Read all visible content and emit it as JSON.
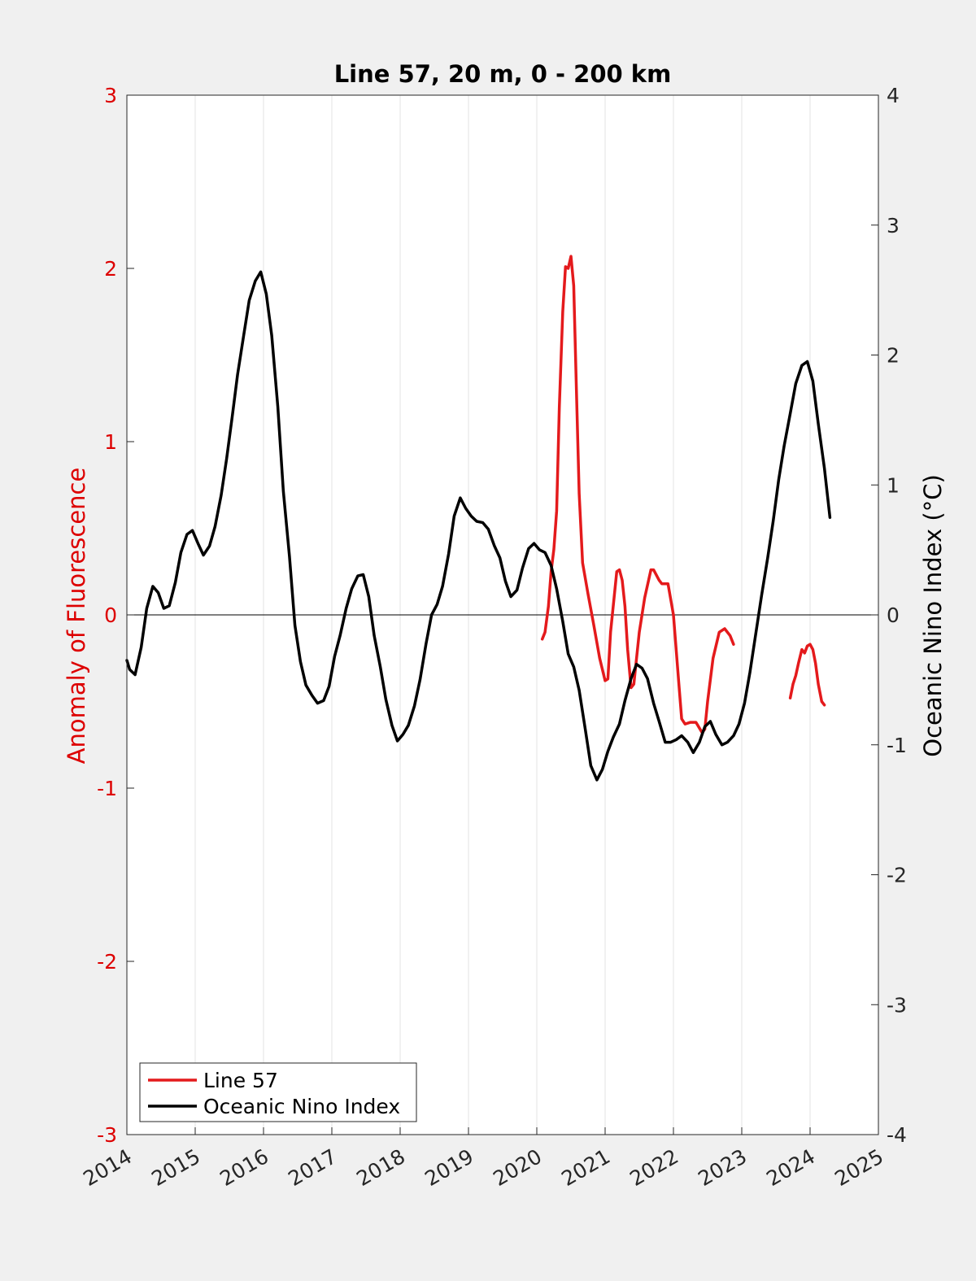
{
  "chart_data": {
    "type": "line",
    "title": "Line 57, 20 m, 0 - 200 km",
    "xlabel": "",
    "ylabel_left": "Anomaly of Fluorescence",
    "ylabel_right": "Oceanic Nino Index (°C)",
    "xlim": [
      2014,
      2025
    ],
    "ylim_left": [
      -3,
      3
    ],
    "ylim_right": [
      -4,
      4
    ],
    "x_ticks": [
      "2014",
      "2015",
      "2016",
      "2017",
      "2018",
      "2019",
      "2020",
      "2021",
      "2022",
      "2023",
      "2024",
      "2025"
    ],
    "y_left_ticks": [
      "-3",
      "-2",
      "-1",
      "0",
      "1",
      "2",
      "3"
    ],
    "y_right_ticks": [
      "-4",
      "-3",
      "-2",
      "-1",
      "0",
      "1",
      "2",
      "3",
      "4"
    ],
    "grid": "vertical",
    "zero_line": true,
    "legend_position": "bottom-left",
    "colors": {
      "fluorescence": "#e41a1c",
      "oni": "#000000",
      "left_axis": "#dd0000"
    },
    "series": [
      {
        "name": "Line 57",
        "axis": "left",
        "color": "#e41a1c",
        "segments": [
          [
            [
              2020.08,
              -0.14
            ],
            [
              2020.12,
              -0.1
            ],
            [
              2020.17,
              0.05
            ],
            [
              2020.21,
              0.25
            ],
            [
              2020.25,
              0.38
            ],
            [
              2020.29,
              0.6
            ],
            [
              2020.33,
              1.2
            ],
            [
              2020.38,
              1.75
            ],
            [
              2020.42,
              2.01
            ],
            [
              2020.46,
              2.0
            ],
            [
              2020.5,
              2.07
            ],
            [
              2020.54,
              1.9
            ],
            [
              2020.58,
              1.3
            ],
            [
              2020.62,
              0.7
            ],
            [
              2020.67,
              0.3
            ],
            [
              2020.75,
              0.12
            ],
            [
              2020.83,
              -0.05
            ],
            [
              2020.92,
              -0.25
            ],
            [
              2021.0,
              -0.38
            ],
            [
              2021.04,
              -0.37
            ],
            [
              2021.08,
              -0.1
            ],
            [
              2021.17,
              0.25
            ],
            [
              2021.21,
              0.26
            ],
            [
              2021.25,
              0.2
            ],
            [
              2021.29,
              0.05
            ],
            [
              2021.33,
              -0.2
            ],
            [
              2021.38,
              -0.42
            ],
            [
              2021.42,
              -0.4
            ],
            [
              2021.5,
              -0.1
            ],
            [
              2021.58,
              0.1
            ],
            [
              2021.67,
              0.26
            ],
            [
              2021.71,
              0.26
            ],
            [
              2021.79,
              0.2
            ],
            [
              2021.83,
              0.18
            ],
            [
              2021.92,
              0.18
            ],
            [
              2022.0,
              0.0
            ],
            [
              2022.08,
              -0.4
            ],
            [
              2022.12,
              -0.6
            ],
            [
              2022.17,
              -0.63
            ],
            [
              2022.25,
              -0.62
            ],
            [
              2022.33,
              -0.62
            ],
            [
              2022.42,
              -0.68
            ],
            [
              2022.46,
              -0.66
            ],
            [
              2022.5,
              -0.5
            ],
            [
              2022.58,
              -0.25
            ],
            [
              2022.67,
              -0.1
            ],
            [
              2022.75,
              -0.08
            ],
            [
              2022.83,
              -0.12
            ],
            [
              2022.88,
              -0.17
            ]
          ],
          [
            [
              2023.71,
              -0.48
            ],
            [
              2023.75,
              -0.4
            ],
            [
              2023.79,
              -0.35
            ],
            [
              2023.83,
              -0.28
            ],
            [
              2023.88,
              -0.2
            ],
            [
              2023.92,
              -0.22
            ],
            [
              2023.96,
              -0.18
            ],
            [
              2024.0,
              -0.17
            ],
            [
              2024.04,
              -0.2
            ],
            [
              2024.08,
              -0.28
            ],
            [
              2024.12,
              -0.4
            ],
            [
              2024.17,
              -0.5
            ],
            [
              2024.21,
              -0.52
            ]
          ]
        ]
      },
      {
        "name": "Oceanic Nino Index",
        "axis": "right",
        "color": "#000000",
        "segments": [
          [
            [
              2014.0,
              -0.35
            ],
            [
              2014.04,
              -0.42
            ],
            [
              2014.12,
              -0.46
            ],
            [
              2014.21,
              -0.25
            ],
            [
              2014.29,
              0.05
            ],
            [
              2014.38,
              0.22
            ],
            [
              2014.46,
              0.17
            ],
            [
              2014.54,
              0.05
            ],
            [
              2014.62,
              0.07
            ],
            [
              2014.71,
              0.25
            ],
            [
              2014.79,
              0.48
            ],
            [
              2014.88,
              0.62
            ],
            [
              2014.96,
              0.65
            ],
            [
              2015.04,
              0.55
            ],
            [
              2015.12,
              0.46
            ],
            [
              2015.21,
              0.53
            ],
            [
              2015.29,
              0.68
            ],
            [
              2015.38,
              0.92
            ],
            [
              2015.46,
              1.2
            ],
            [
              2015.54,
              1.52
            ],
            [
              2015.62,
              1.85
            ],
            [
              2015.71,
              2.15
            ],
            [
              2015.79,
              2.42
            ],
            [
              2015.88,
              2.57
            ],
            [
              2015.96,
              2.64
            ],
            [
              2016.04,
              2.47
            ],
            [
              2016.12,
              2.15
            ],
            [
              2016.21,
              1.6
            ],
            [
              2016.29,
              0.95
            ],
            [
              2016.38,
              0.45
            ],
            [
              2016.46,
              -0.08
            ],
            [
              2016.54,
              -0.36
            ],
            [
              2016.62,
              -0.54
            ],
            [
              2016.71,
              -0.62
            ],
            [
              2016.79,
              -0.68
            ],
            [
              2016.88,
              -0.66
            ],
            [
              2016.96,
              -0.55
            ],
            [
              2017.04,
              -0.32
            ],
            [
              2017.12,
              -0.16
            ],
            [
              2017.21,
              0.05
            ],
            [
              2017.29,
              0.2
            ],
            [
              2017.38,
              0.3
            ],
            [
              2017.46,
              0.31
            ],
            [
              2017.54,
              0.14
            ],
            [
              2017.62,
              -0.16
            ],
            [
              2017.71,
              -0.4
            ],
            [
              2017.79,
              -0.65
            ],
            [
              2017.88,
              -0.85
            ],
            [
              2017.96,
              -0.97
            ],
            [
              2018.04,
              -0.92
            ],
            [
              2018.12,
              -0.85
            ],
            [
              2018.21,
              -0.7
            ],
            [
              2018.29,
              -0.5
            ],
            [
              2018.38,
              -0.22
            ],
            [
              2018.46,
              0.0
            ],
            [
              2018.54,
              0.08
            ],
            [
              2018.62,
              0.22
            ],
            [
              2018.71,
              0.47
            ],
            [
              2018.79,
              0.76
            ],
            [
              2018.88,
              0.9
            ],
            [
              2018.96,
              0.82
            ],
            [
              2019.04,
              0.76
            ],
            [
              2019.12,
              0.72
            ],
            [
              2019.21,
              0.71
            ],
            [
              2019.29,
              0.66
            ],
            [
              2019.38,
              0.53
            ],
            [
              2019.46,
              0.44
            ],
            [
              2019.54,
              0.26
            ],
            [
              2019.62,
              0.14
            ],
            [
              2019.71,
              0.19
            ],
            [
              2019.79,
              0.36
            ],
            [
              2019.88,
              0.51
            ],
            [
              2019.96,
              0.55
            ],
            [
              2020.04,
              0.5
            ],
            [
              2020.12,
              0.48
            ],
            [
              2020.21,
              0.38
            ],
            [
              2020.29,
              0.2
            ],
            [
              2020.38,
              -0.05
            ],
            [
              2020.46,
              -0.3
            ],
            [
              2020.54,
              -0.4
            ],
            [
              2020.62,
              -0.58
            ],
            [
              2020.71,
              -0.88
            ],
            [
              2020.79,
              -1.16
            ],
            [
              2020.88,
              -1.27
            ],
            [
              2020.96,
              -1.19
            ],
            [
              2021.04,
              -1.05
            ],
            [
              2021.12,
              -0.94
            ],
            [
              2021.21,
              -0.84
            ],
            [
              2021.29,
              -0.66
            ],
            [
              2021.38,
              -0.49
            ],
            [
              2021.46,
              -0.38
            ],
            [
              2021.54,
              -0.41
            ],
            [
              2021.62,
              -0.49
            ],
            [
              2021.71,
              -0.68
            ],
            [
              2021.79,
              -0.82
            ],
            [
              2021.88,
              -0.98
            ],
            [
              2021.96,
              -0.98
            ],
            [
              2022.04,
              -0.96
            ],
            [
              2022.12,
              -0.93
            ],
            [
              2022.21,
              -0.98
            ],
            [
              2022.29,
              -1.06
            ],
            [
              2022.38,
              -0.98
            ],
            [
              2022.46,
              -0.86
            ],
            [
              2022.54,
              -0.82
            ],
            [
              2022.62,
              -0.92
            ],
            [
              2022.71,
              -1.0
            ],
            [
              2022.79,
              -0.98
            ],
            [
              2022.88,
              -0.93
            ],
            [
              2022.96,
              -0.84
            ],
            [
              2023.04,
              -0.68
            ],
            [
              2023.12,
              -0.44
            ],
            [
              2023.21,
              -0.13
            ],
            [
              2023.29,
              0.15
            ],
            [
              2023.38,
              0.44
            ],
            [
              2023.46,
              0.72
            ],
            [
              2023.54,
              1.04
            ],
            [
              2023.62,
              1.3
            ],
            [
              2023.71,
              1.55
            ],
            [
              2023.79,
              1.78
            ],
            [
              2023.88,
              1.92
            ],
            [
              2023.96,
              1.95
            ],
            [
              2024.04,
              1.8
            ],
            [
              2024.12,
              1.47
            ],
            [
              2024.21,
              1.13
            ],
            [
              2024.29,
              0.75
            ]
          ]
        ]
      }
    ]
  }
}
